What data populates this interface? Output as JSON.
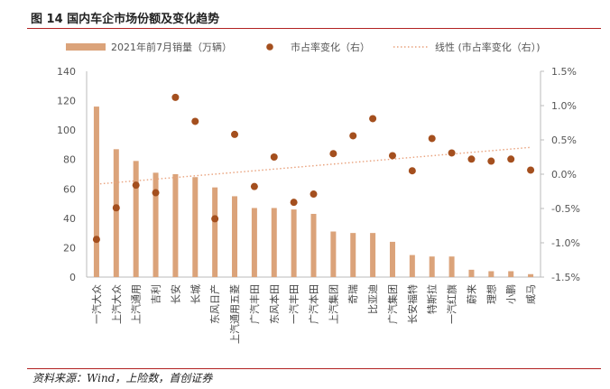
{
  "figure": {
    "title": "图 14 国内车企市场份额及变化趋势",
    "source": "资料来源：Wind，上险数，首创证券"
  },
  "colors": {
    "bar": "#dba37a",
    "dot": "#a44f1e",
    "trend": "#e9a27d",
    "rule": "#b22222"
  },
  "chart_data": {
    "type": "bar",
    "title": "",
    "categories": [
      "一汽大众",
      "上汽大众",
      "上汽通用",
      "吉利",
      "长安",
      "长城",
      "东风日产",
      "上汽通用五菱",
      "广汽丰田",
      "东风本田",
      "一汽丰田",
      "广汽本田",
      "上汽集团",
      "奇瑞",
      "比亚迪",
      "广汽集团",
      "长安福特",
      "特斯拉",
      "一汽红旗",
      "蔚来",
      "理想",
      "小鹏",
      "威马"
    ],
    "series": [
      {
        "name": "2021年前7月销量（万辆）",
        "axis": "left",
        "kind": "bar",
        "values": [
          116,
          87,
          79,
          71,
          70,
          68,
          61,
          55,
          47,
          47,
          46,
          43,
          31,
          30,
          30,
          24,
          15,
          14,
          14,
          5,
          4,
          4,
          2
        ]
      },
      {
        "name": "市占率变化（右）",
        "axis": "right",
        "kind": "scatter",
        "values": [
          -0.95,
          -0.49,
          -0.16,
          -0.27,
          1.12,
          0.77,
          -0.65,
          0.58,
          -0.18,
          0.25,
          -0.41,
          -0.29,
          0.3,
          0.56,
          0.81,
          0.27,
          0.05,
          0.52,
          0.31,
          0.22,
          0.19,
          0.22,
          0.06
        ]
      },
      {
        "name": "线性 (市占率变化（右）)",
        "axis": "right",
        "kind": "trendline"
      }
    ],
    "left_axis": {
      "min": 0,
      "max": 140,
      "step": 20,
      "ticks": [
        "0",
        "20",
        "40",
        "60",
        "80",
        "100",
        "120",
        "140"
      ]
    },
    "right_axis": {
      "min": -1.5,
      "max": 1.5,
      "step": 0.5,
      "ticks": [
        "-1.5%",
        "-1.0%",
        "-0.5%",
        "0.0%",
        "0.5%",
        "1.0%",
        "1.5%"
      ]
    },
    "legend_position": "top",
    "grid": false
  }
}
